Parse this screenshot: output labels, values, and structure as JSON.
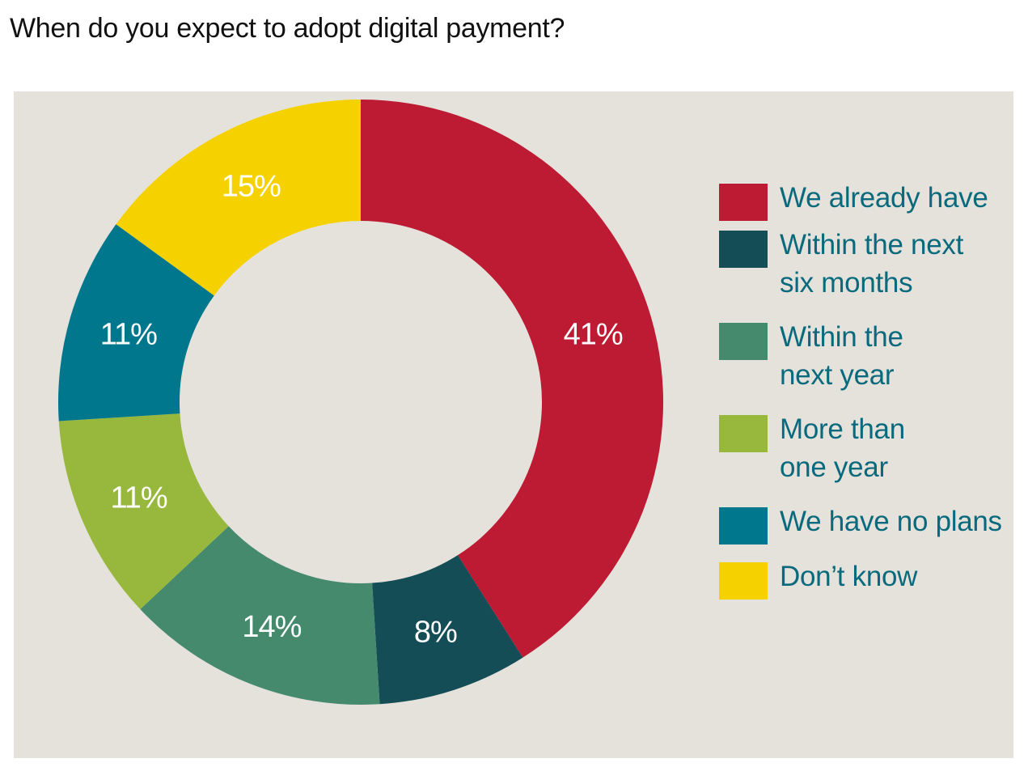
{
  "title": "When do you expect to adopt digital payment?",
  "colors": {
    "panel_bg": "#e5e2dc",
    "label_text": "#ffffff",
    "legend_text": "#0a6a7d"
  },
  "chart_data": {
    "type": "pie",
    "style": "donut",
    "title": "When do you expect to adopt digital payment?",
    "legend_position": "right",
    "categories": [
      "We already have",
      "Within the next six months",
      "Within the next year",
      "More than one year",
      "We have no plans",
      "Don't know"
    ],
    "values": [
      41,
      8,
      14,
      11,
      11,
      15
    ],
    "labels": [
      "41%",
      "8%",
      "14%",
      "11%",
      "11%",
      "15%"
    ],
    "legend": [
      {
        "lines": [
          "We already have"
        ],
        "color": "#bd1a33"
      },
      {
        "lines": [
          "Within the next",
          "six months"
        ],
        "color": "#154d57"
      },
      {
        "lines": [
          "Within the",
          "next year"
        ],
        "color": "#458a6c"
      },
      {
        "lines": [
          "More than",
          "one year"
        ],
        "color": "#97b83d"
      },
      {
        "lines": [
          "We have no plans"
        ],
        "color": "#00778c"
      },
      {
        "lines": [
          "Don’t know"
        ],
        "color": "#f6d100"
      }
    ],
    "unit": "%"
  }
}
